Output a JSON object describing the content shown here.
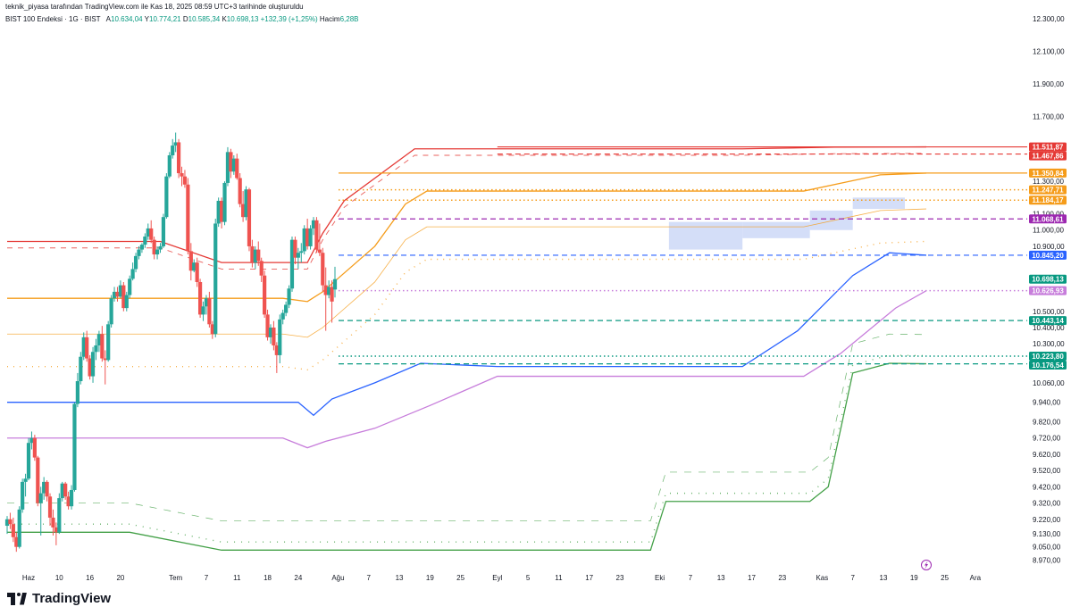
{
  "header": {
    "note": "teknik_piyasa tarafından TradingView.com ile Kas 18, 2025 08:59 UTC+3 tarihinde oluşturuldu"
  },
  "legend": {
    "symbol": "BIST 100 Endeksi · 1G · BIST",
    "open_label": "A",
    "open": "10.634,04",
    "high_label": "Y",
    "high": "10.774,21",
    "low_label": "D",
    "low": "10.585,34",
    "close_label": "K",
    "close": "10.698,13",
    "change": "+132,39 (+1,25%)",
    "volume_label": "Hacim",
    "volume": "6,28B"
  },
  "logo": {
    "text": "TradingView"
  },
  "colors": {
    "up": "#26a69a",
    "down": "#ef5350",
    "red_band": "#e53935",
    "orange_band": "#f59c1a",
    "purple_band": "#c77ddb",
    "blue_band": "#2962ff",
    "green_band": "#43a047",
    "zone": "#c5d3f6"
  },
  "chart_data": {
    "type": "candlestick",
    "ylim": [
      8900,
      12350
    ],
    "y_ticks": [
      "12.300,00",
      "12.100,00",
      "11.900,00",
      "11.700,00",
      "11.300,00",
      "11.100,00",
      "11.000,00",
      "10.900,00",
      "10.500,00",
      "10.400,00",
      "10.300,00",
      "10.060,00",
      "9.940,00",
      "9.820,00",
      "9.720,00",
      "9.620,00",
      "9.520,00",
      "9.420,00",
      "9.320,00",
      "9.220,00",
      "9.130,00",
      "9.050,00",
      "8.970,00"
    ],
    "y_tick_values": [
      12300,
      12100,
      11900,
      11700,
      11300,
      11100,
      11000,
      10900,
      10500,
      10400,
      10300,
      10060,
      9940,
      9820,
      9720,
      9620,
      9520,
      9420,
      9320,
      9220,
      9130,
      9050,
      8970
    ],
    "x_ticks": [
      {
        "label": "Haz",
        "i": 7
      },
      {
        "label": "10",
        "i": 17
      },
      {
        "label": "16",
        "i": 27
      },
      {
        "label": "20",
        "i": 37
      },
      {
        "label": "Tem",
        "i": 55
      },
      {
        "label": "7",
        "i": 65
      },
      {
        "label": "11",
        "i": 75
      },
      {
        "label": "18",
        "i": 85
      },
      {
        "label": "24",
        "i": 95
      },
      {
        "label": "Ağu",
        "i": 108
      },
      {
        "label": "7",
        "i": 118
      },
      {
        "label": "13",
        "i": 128
      },
      {
        "label": "19",
        "i": 138
      },
      {
        "label": "25",
        "i": 148
      },
      {
        "label": "Eyl",
        "i": 160
      },
      {
        "label": "5",
        "i": 170
      },
      {
        "label": "11",
        "i": 180
      },
      {
        "label": "17",
        "i": 190
      },
      {
        "label": "23",
        "i": 200
      },
      {
        "label": "Eki",
        "i": 213
      },
      {
        "label": "7",
        "i": 223
      },
      {
        "label": "13",
        "i": 233
      },
      {
        "label": "17",
        "i": 243
      },
      {
        "label": "23",
        "i": 253
      },
      {
        "label": "Kas",
        "i": 266
      },
      {
        "label": "7",
        "i": 276
      },
      {
        "label": "13",
        "i": 286
      },
      {
        "label": "19",
        "i": 296
      },
      {
        "label": "25",
        "i": 306
      },
      {
        "label": "Ara",
        "i": 316
      }
    ],
    "candles": [
      [
        9180,
        9240,
        9130,
        9220
      ],
      [
        9220,
        9260,
        9160,
        9190
      ],
      [
        9190,
        9230,
        9080,
        9110
      ],
      [
        9110,
        9140,
        9020,
        9050
      ],
      [
        9050,
        9300,
        9040,
        9280
      ],
      [
        9280,
        9470,
        9260,
        9450
      ],
      [
        9450,
        9500,
        9360,
        9470
      ],
      [
        9470,
        9720,
        9460,
        9690
      ],
      [
        9690,
        9760,
        9650,
        9720
      ],
      [
        9720,
        9740,
        9580,
        9600
      ],
      [
        9600,
        9610,
        9300,
        9320
      ],
      [
        9320,
        9420,
        9120,
        9380
      ],
      [
        9380,
        9480,
        9340,
        9450
      ],
      [
        9450,
        9460,
        9330,
        9360
      ],
      [
        9360,
        9380,
        9180,
        9230
      ],
      [
        9230,
        9280,
        9120,
        9170
      ],
      [
        9170,
        9200,
        9060,
        9140
      ],
      [
        9140,
        9380,
        9130,
        9350
      ],
      [
        9350,
        9450,
        9330,
        9440
      ],
      [
        9440,
        9450,
        9340,
        9360
      ],
      [
        9360,
        9390,
        9280,
        9300
      ],
      [
        9300,
        9430,
        9280,
        9400
      ],
      [
        9400,
        9940,
        9390,
        9930
      ],
      [
        9930,
        10120,
        9910,
        10070
      ],
      [
        10070,
        10250,
        10050,
        10220
      ],
      [
        10220,
        10370,
        10200,
        10340
      ],
      [
        10340,
        10380,
        10190,
        10210
      ],
      [
        10210,
        10230,
        10080,
        10100
      ],
      [
        10100,
        10280,
        10060,
        10250
      ],
      [
        10250,
        10330,
        10200,
        10290
      ],
      [
        10290,
        10380,
        10250,
        10360
      ],
      [
        10360,
        10410,
        10190,
        10210
      ],
      [
        10210,
        10260,
        10050,
        10200
      ],
      [
        10200,
        10440,
        10190,
        10420
      ],
      [
        10420,
        10600,
        10400,
        10580
      ],
      [
        10580,
        10650,
        10560,
        10620
      ],
      [
        10620,
        10650,
        10560,
        10590
      ],
      [
        10590,
        10690,
        10580,
        10660
      ],
      [
        10660,
        10680,
        10500,
        10520
      ],
      [
        10520,
        10620,
        10500,
        10600
      ],
      [
        10600,
        10720,
        10580,
        10700
      ],
      [
        10700,
        10800,
        10690,
        10760
      ],
      [
        10760,
        10860,
        10740,
        10840
      ],
      [
        10840,
        10900,
        10820,
        10880
      ],
      [
        10880,
        10920,
        10860,
        10910
      ],
      [
        10910,
        10980,
        10890,
        10960
      ],
      [
        10960,
        11040,
        10940,
        11010
      ],
      [
        11010,
        11060,
        10920,
        10940
      ],
      [
        10940,
        10960,
        10820,
        10850
      ],
      [
        10850,
        10900,
        10820,
        10880
      ],
      [
        10880,
        10920,
        10860,
        10900
      ],
      [
        10900,
        11100,
        10890,
        11080
      ],
      [
        11080,
        11350,
        11070,
        11330
      ],
      [
        11330,
        11480,
        11320,
        11460
      ],
      [
        11460,
        11560,
        11440,
        11520
      ],
      [
        11520,
        11600,
        11480,
        11540
      ],
      [
        11540,
        11560,
        11320,
        11350
      ],
      [
        11350,
        11390,
        11270,
        11330
      ],
      [
        11330,
        11370,
        11260,
        11280
      ],
      [
        11280,
        11320,
        10850,
        10870
      ],
      [
        10870,
        10920,
        10690,
        10750
      ],
      [
        10750,
        10820,
        10740,
        10800
      ],
      [
        10800,
        10830,
        10650,
        10680
      ],
      [
        10680,
        10700,
        10460,
        10480
      ],
      [
        10480,
        10560,
        10440,
        10530
      ],
      [
        10530,
        10600,
        10480,
        10580
      ],
      [
        10580,
        10620,
        10400,
        10420
      ],
      [
        10420,
        10440,
        10330,
        10360
      ],
      [
        10360,
        11070,
        10340,
        11040
      ],
      [
        11040,
        11200,
        11020,
        11180
      ],
      [
        11180,
        11200,
        11010,
        11050
      ],
      [
        11050,
        11300,
        11030,
        11290
      ],
      [
        11290,
        11510,
        11270,
        11480
      ],
      [
        11480,
        11500,
        11320,
        11360
      ],
      [
        11360,
        11460,
        11340,
        11440
      ],
      [
        11440,
        11470,
        11310,
        11320
      ],
      [
        11320,
        11350,
        11140,
        11160
      ],
      [
        11160,
        11240,
        11050,
        11080
      ],
      [
        11080,
        11270,
        11060,
        11250
      ],
      [
        11250,
        11260,
        10870,
        10900
      ],
      [
        10900,
        10940,
        10770,
        10800
      ],
      [
        10800,
        10900,
        10760,
        10880
      ],
      [
        10880,
        10930,
        10780,
        10810
      ],
      [
        10810,
        10830,
        10680,
        10720
      ],
      [
        10720,
        10750,
        10460,
        10480
      ],
      [
        10480,
        10510,
        10320,
        10340
      ],
      [
        10340,
        10420,
        10300,
        10400
      ],
      [
        10400,
        10440,
        10260,
        10290
      ],
      [
        10290,
        10310,
        10120,
        10230
      ],
      [
        10230,
        10480,
        10180,
        10450
      ],
      [
        10450,
        10510,
        10420,
        10490
      ],
      [
        10490,
        10560,
        10470,
        10540
      ],
      [
        10540,
        10660,
        10520,
        10640
      ],
      [
        10640,
        10960,
        10620,
        10940
      ],
      [
        10940,
        10960,
        10790,
        10830
      ],
      [
        10830,
        10890,
        10760,
        10860
      ],
      [
        10860,
        10920,
        10800,
        10870
      ],
      [
        10870,
        11030,
        10850,
        11010
      ],
      [
        11010,
        11070,
        10880,
        10900
      ],
      [
        10900,
        11030,
        10880,
        11010
      ],
      [
        11010,
        11080,
        10970,
        11060
      ],
      [
        11060,
        11080,
        10860,
        10880
      ],
      [
        10880,
        11040,
        10840,
        10860
      ],
      [
        10860,
        10890,
        10620,
        10660
      ],
      [
        10660,
        10770,
        10380,
        10600
      ],
      [
        10600,
        10690,
        10580,
        10650
      ],
      [
        10650,
        10690,
        10430,
        10560
      ],
      [
        10634,
        10774,
        10585,
        10698
      ]
    ],
    "bands": {
      "red": [
        [
          0,
          10930
        ],
        [
          50,
          10930
        ],
        [
          70,
          10800
        ],
        [
          98,
          10800
        ],
        [
          103,
          10980
        ],
        [
          110,
          11180
        ],
        [
          133,
          11500
        ],
        [
          188,
          11500
        ],
        [
          240,
          11500
        ],
        [
          270,
          11510
        ],
        [
          300,
          11512
        ]
      ],
      "orange": [
        [
          0,
          10580
        ],
        [
          60,
          10580
        ],
        [
          90,
          10580
        ],
        [
          98,
          10560
        ],
        [
          103,
          10620
        ],
        [
          120,
          10900
        ],
        [
          130,
          11160
        ],
        [
          137,
          11240
        ],
        [
          190,
          11240
        ],
        [
          240,
          11240
        ],
        [
          260,
          11240
        ],
        [
          275,
          11300
        ],
        [
          285,
          11340
        ],
        [
          300,
          11350
        ]
      ],
      "purple": [
        [
          0,
          9720
        ],
        [
          50,
          9720
        ],
        [
          90,
          9720
        ],
        [
          98,
          9660
        ],
        [
          104,
          9700
        ],
        [
          120,
          9780
        ],
        [
          138,
          9920
        ],
        [
          160,
          10100
        ],
        [
          240,
          10100
        ],
        [
          260,
          10100
        ],
        [
          272,
          10240
        ],
        [
          290,
          10520
        ],
        [
          300,
          10627
        ]
      ],
      "blue": [
        [
          0,
          9940
        ],
        [
          70,
          9940
        ],
        [
          95,
          9940
        ],
        [
          100,
          9860
        ],
        [
          106,
          9960
        ],
        [
          120,
          10060
        ],
        [
          135,
          10180
        ],
        [
          160,
          10160
        ],
        [
          240,
          10160
        ],
        [
          258,
          10380
        ],
        [
          276,
          10720
        ],
        [
          288,
          10860
        ],
        [
          300,
          10845
        ]
      ],
      "green": [
        [
          0,
          9140
        ],
        [
          40,
          9140
        ],
        [
          70,
          9030
        ],
        [
          210,
          9030
        ],
        [
          215,
          9330
        ],
        [
          262,
          9330
        ],
        [
          268,
          9420
        ],
        [
          276,
          10120
        ],
        [
          288,
          10180
        ],
        [
          300,
          10177
        ]
      ]
    },
    "levels": [
      {
        "value": 11511.87,
        "label": "11.511,87",
        "color": "#e53935",
        "style": "solid"
      },
      {
        "value": 11467.86,
        "label": "11.467,86",
        "color": "#e53935",
        "style": "dashed"
      },
      {
        "value": 11350.84,
        "label": "11.350,84",
        "color": "#f59c1a",
        "style": "solid"
      },
      {
        "value": 11247.71,
        "label": "11.247,71",
        "color": "#f59c1a",
        "style": "dotted"
      },
      {
        "value": 11184.17,
        "label": "11.184,17",
        "color": "#f59c1a",
        "style": "dotted"
      },
      {
        "value": 11068.61,
        "label": "11.068,61",
        "color": "#9c27b0",
        "style": "dashed"
      },
      {
        "value": 10845.2,
        "label": "10.845,20",
        "color": "#2962ff",
        "style": "dashed"
      },
      {
        "value": 10698.13,
        "label": "10.698,13",
        "color": "#089981",
        "style": "none"
      },
      {
        "value": 10626.93,
        "label": "10.626,93",
        "color": "#c77ddb",
        "style": "dotted"
      },
      {
        "value": 10443.14,
        "label": "10.443,14",
        "color": "#089981",
        "style": "dashed"
      },
      {
        "value": 10223.8,
        "label": "10.223,80",
        "color": "#089981",
        "style": "dotted"
      },
      {
        "value": 10176.54,
        "label": "10.176,54",
        "color": "#089981",
        "style": "dashed"
      }
    ]
  }
}
